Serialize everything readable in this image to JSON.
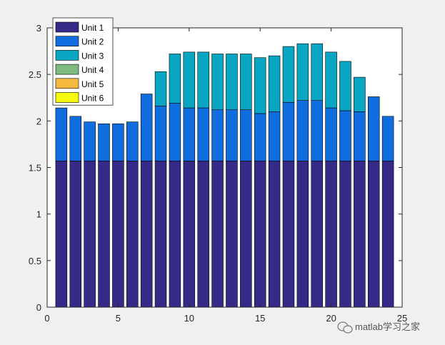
{
  "watermark": {
    "text": "matlab学习之家",
    "icon": "wechat-icon"
  },
  "chart_data": {
    "type": "bar",
    "stacked": true,
    "title": "",
    "xlabel": "",
    "ylabel": "",
    "xlim": [
      0,
      25
    ],
    "ylim": [
      0,
      3
    ],
    "xticks": [
      0,
      5,
      10,
      15,
      20,
      25
    ],
    "xtick_labels": [
      "0",
      "5",
      "10",
      "15",
      "20",
      "25"
    ],
    "yticks": [
      0,
      0.5,
      1,
      1.5,
      2,
      2.5,
      3
    ],
    "ytick_labels": [
      "0",
      "0.5",
      "1",
      "1.5",
      "2",
      "2.5",
      "3"
    ],
    "grid": false,
    "legend_position": "top-left",
    "x": [
      1,
      2,
      3,
      4,
      5,
      6,
      7,
      8,
      9,
      10,
      11,
      12,
      13,
      14,
      15,
      16,
      17,
      18,
      19,
      20,
      21,
      22,
      23,
      24
    ],
    "series": [
      {
        "name": "Unit 1",
        "color": "#352a87",
        "values": [
          1.57,
          1.57,
          1.57,
          1.57,
          1.57,
          1.57,
          1.57,
          1.57,
          1.57,
          1.57,
          1.57,
          1.57,
          1.57,
          1.57,
          1.57,
          1.57,
          1.57,
          1.57,
          1.57,
          1.57,
          1.57,
          1.57,
          1.57,
          1.57
        ]
      },
      {
        "name": "Unit 2",
        "color": "#0f6ddf",
        "values": [
          0.57,
          0.48,
          0.42,
          0.4,
          0.4,
          0.42,
          0.72,
          0.59,
          0.62,
          0.57,
          0.57,
          0.55,
          0.55,
          0.55,
          0.51,
          0.53,
          0.63,
          0.65,
          0.65,
          0.57,
          0.54,
          0.53,
          0.69,
          0.48
        ]
      },
      {
        "name": "Unit 3",
        "color": "#08a6c2",
        "values": [
          0,
          0,
          0,
          0,
          0,
          0,
          0,
          0.37,
          0.53,
          0.6,
          0.6,
          0.6,
          0.6,
          0.6,
          0.6,
          0.6,
          0.6,
          0.61,
          0.61,
          0.6,
          0.53,
          0.37,
          0,
          0
        ]
      },
      {
        "name": "Unit 4",
        "color": "#7dba7e",
        "values": [
          0,
          0,
          0,
          0,
          0,
          0,
          0,
          0,
          0,
          0,
          0,
          0,
          0,
          0,
          0,
          0,
          0,
          0,
          0,
          0,
          0,
          0,
          0,
          0
        ]
      },
      {
        "name": "Unit 5",
        "color": "#f5b93f",
        "values": [
          0,
          0,
          0,
          0,
          0,
          0,
          0,
          0,
          0,
          0,
          0,
          0,
          0,
          0,
          0,
          0,
          0,
          0,
          0,
          0,
          0,
          0,
          0,
          0
        ]
      },
      {
        "name": "Unit 6",
        "color": "#f9fb0e",
        "values": [
          0,
          0,
          0,
          0,
          0,
          0,
          0,
          0,
          0,
          0,
          0,
          0,
          0,
          0,
          0,
          0,
          0,
          0,
          0,
          0,
          0,
          0,
          0,
          0
        ]
      }
    ]
  }
}
